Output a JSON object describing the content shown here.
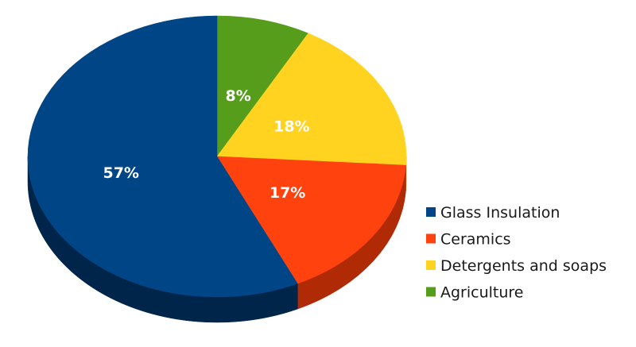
{
  "chart_data": {
    "type": "pie",
    "style": "3d",
    "title": "",
    "slices": [
      {
        "label": "Glass Insulation",
        "value": 57,
        "display": "57%",
        "color": "#004586",
        "side_color": "#00254a"
      },
      {
        "label": "Ceramics",
        "value": 17,
        "display": "17%",
        "color": "#ff420e",
        "side_color": "#b02a05"
      },
      {
        "label": "Detergents and soaps",
        "value": 18,
        "display": "18%",
        "color": "#ffd320",
        "side_color": "#b89400"
      },
      {
        "label": "Agriculture",
        "value": 8,
        "display": "8%",
        "color": "#579d1c",
        "side_color": "#345e10"
      }
    ],
    "legend_position": "right"
  }
}
